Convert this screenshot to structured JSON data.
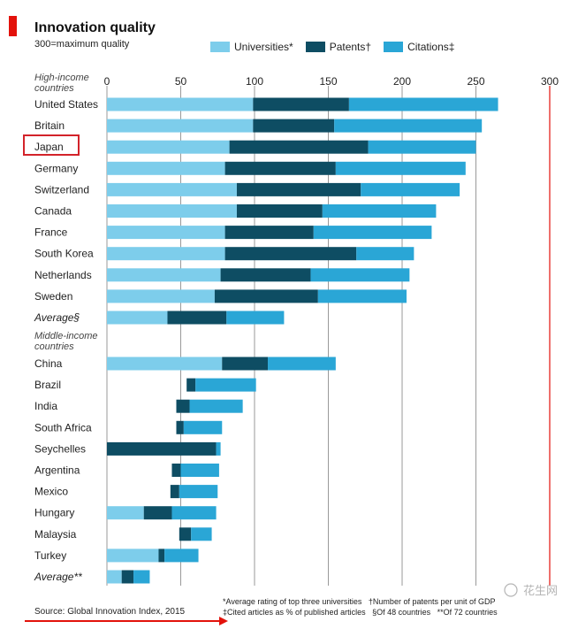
{
  "title": "Innovation quality",
  "subtitle": "300=maximum quality",
  "legend": [
    {
      "label": "Universities*",
      "color": "#7dcdeb"
    },
    {
      "label": "Patents†",
      "color": "#0e4d63"
    },
    {
      "label": "Citations‡",
      "color": "#2aa6d6"
    }
  ],
  "colors": {
    "universities": "#7dcdeb",
    "patents": "#0e4d63",
    "citations": "#2aa6d6",
    "accent_red": "#e3120b",
    "grid": "#555555"
  },
  "source": "Source: Global Innovation Index, 2015",
  "footnotes": "*Average rating of top three universities   †Number of patents per unit of GDP\n‡Cited articles as % of published articles   §Of 48 countries   **Of 72 countries",
  "watermark": "花生网",
  "chart_data": {
    "type": "bar",
    "orientation": "horizontal",
    "stacked": true,
    "xlim": [
      0,
      300
    ],
    "xticks": [
      "0",
      "50",
      "100",
      "150",
      "200",
      "250",
      "300"
    ],
    "groups": [
      {
        "label": "High-income countries",
        "categories": [
          "United States",
          "Britain",
          "Japan",
          "Germany",
          "Switzerland",
          "Canada",
          "France",
          "South Korea",
          "Netherlands",
          "Sweden",
          "Average§"
        ]
      },
      {
        "label": "Middle-income countries",
        "categories": [
          "China",
          "Brazil",
          "India",
          "South Africa",
          "Seychelles",
          "Argentina",
          "Mexico",
          "Hungary",
          "Malaysia",
          "Turkey",
          "Average**"
        ]
      }
    ],
    "highlighted": "Japan",
    "series": [
      {
        "name": "Universities*",
        "values": [
          99,
          99,
          83,
          80,
          88,
          88,
          80,
          80,
          77,
          73,
          41,
          78,
          0,
          0,
          0,
          0,
          0,
          0,
          25,
          0,
          35,
          10
        ]
      },
      {
        "name": "Patents†",
        "values": [
          65,
          55,
          94,
          75,
          84,
          58,
          60,
          89,
          61,
          70,
          40,
          31,
          6,
          9,
          5,
          74,
          6,
          6,
          19,
          8,
          4,
          8
        ]
      },
      {
        "name": "Citations‡",
        "values": [
          101,
          100,
          73,
          88,
          67,
          77,
          80,
          39,
          67,
          60,
          39,
          46,
          41,
          36,
          26,
          3,
          26,
          26,
          30,
          14,
          23,
          11
        ]
      }
    ],
    "series_offsets": [
      0,
      0,
      0,
      0,
      0,
      0,
      0,
      0,
      0,
      0,
      0,
      0,
      54,
      47,
      47,
      0,
      44,
      43,
      0,
      49,
      0,
      0
    ]
  }
}
